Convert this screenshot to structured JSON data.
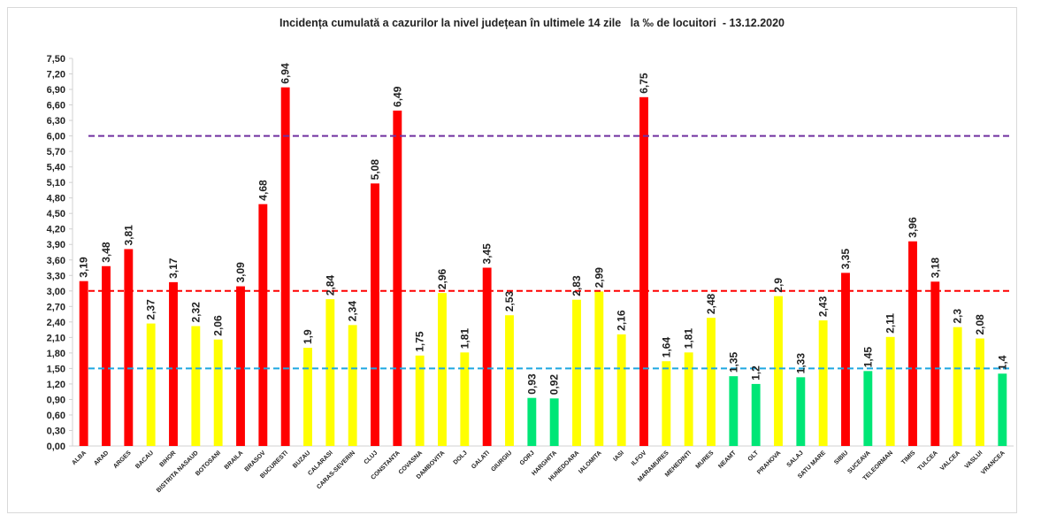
{
  "chart_data": {
    "type": "bar",
    "title": "Incidența cumulată a cazurilor la nivel județean în ultimele 14 zile   la ‰ de locuitori  - 13.12.2020",
    "xlabel": "",
    "ylabel": "",
    "ylim": [
      0,
      7.5
    ],
    "yticks": [
      "0,00",
      "0,30",
      "0,60",
      "0,90",
      "1,20",
      "1,50",
      "1,80",
      "2,10",
      "2,40",
      "2,70",
      "3,00",
      "3,30",
      "3,60",
      "3,90",
      "4,20",
      "4,50",
      "4,80",
      "5,10",
      "5,40",
      "5,70",
      "6,00",
      "6,30",
      "6,60",
      "6,90",
      "7,20",
      "7,50"
    ],
    "grid": false,
    "legend": "none",
    "categories": [
      "ALBA",
      "ARAD",
      "ARGES",
      "BACAU",
      "BIHOR",
      "BISTRITA NASAUD",
      "BOTOSANI",
      "BRAILA",
      "BRASOV",
      "BUCURESTI",
      "BUZAU",
      "CALARASI",
      "CARAS-SEVERIN",
      "CLUJ",
      "CONSTANTA",
      "COVASNA",
      "DAMBOVITA",
      "DOLJ",
      "GALATI",
      "GIURGIU",
      "GORJ",
      "HARGHITA",
      "HUNEDOARA",
      "IALOMITA",
      "IASI",
      "ILFOV",
      "MARAMURES",
      "MEHEDINTI",
      "MURES",
      "NEAMT",
      "OLT",
      "PRAHOVA",
      "SALAJ",
      "SATU MARE",
      "SIBIU",
      "SUCEAVA",
      "TELEORMAN",
      "TIMIS",
      "TULCEA",
      "VALCEA",
      "VASLUI",
      "VRANCEA"
    ],
    "values": [
      3.19,
      3.48,
      3.81,
      2.37,
      3.17,
      2.32,
      2.06,
      3.09,
      4.68,
      6.94,
      1.9,
      2.84,
      2.34,
      5.08,
      6.49,
      1.75,
      2.96,
      1.81,
      3.45,
      2.53,
      0.93,
      0.92,
      2.83,
      2.99,
      2.16,
      6.75,
      1.64,
      1.81,
      2.48,
      1.35,
      1.2,
      2.9,
      1.33,
      2.43,
      3.35,
      1.45,
      2.11,
      3.96,
      3.18,
      2.3,
      2.08,
      1.4
    ],
    "data_labels": [
      "3,19",
      "3,48",
      "3,81",
      "2,37",
      "3,17",
      "2,32",
      "2,06",
      "3,09",
      "4,68",
      "6,94",
      "1,9",
      "2,84",
      "2,34",
      "5,08",
      "6,49",
      "1,75",
      "2,96",
      "1,81",
      "3,45",
      "2,53",
      "0,93",
      "0,92",
      "2,83",
      "2,99",
      "2,16",
      "6,75",
      "1,64",
      "1,81",
      "2,48",
      "1,35",
      "1,2",
      "2,9",
      "1,33",
      "2,43",
      "3,35",
      "1,45",
      "2,11",
      "3,96",
      "3,18",
      "2,3",
      "2,08",
      "1,4"
    ],
    "colors": {
      "red": "#ff0000",
      "yellow": "#ffff00",
      "green": "#00e676"
    },
    "bar_colors": [
      "red",
      "red",
      "red",
      "yellow",
      "red",
      "yellow",
      "yellow",
      "red",
      "red",
      "red",
      "yellow",
      "yellow",
      "yellow",
      "red",
      "red",
      "yellow",
      "yellow",
      "yellow",
      "red",
      "yellow",
      "green",
      "green",
      "yellow",
      "yellow",
      "yellow",
      "red",
      "yellow",
      "yellow",
      "yellow",
      "green",
      "green",
      "yellow",
      "green",
      "yellow",
      "red",
      "green",
      "yellow",
      "red",
      "red",
      "yellow",
      "yellow",
      "green"
    ],
    "reference_lines": [
      {
        "value": 6.0,
        "color": "#7030a0",
        "style": "dashed"
      },
      {
        "value": 3.0,
        "color": "#ff0000",
        "style": "dashed"
      },
      {
        "value": 1.5,
        "color": "#1ea7e1",
        "style": "dashed"
      }
    ]
  }
}
